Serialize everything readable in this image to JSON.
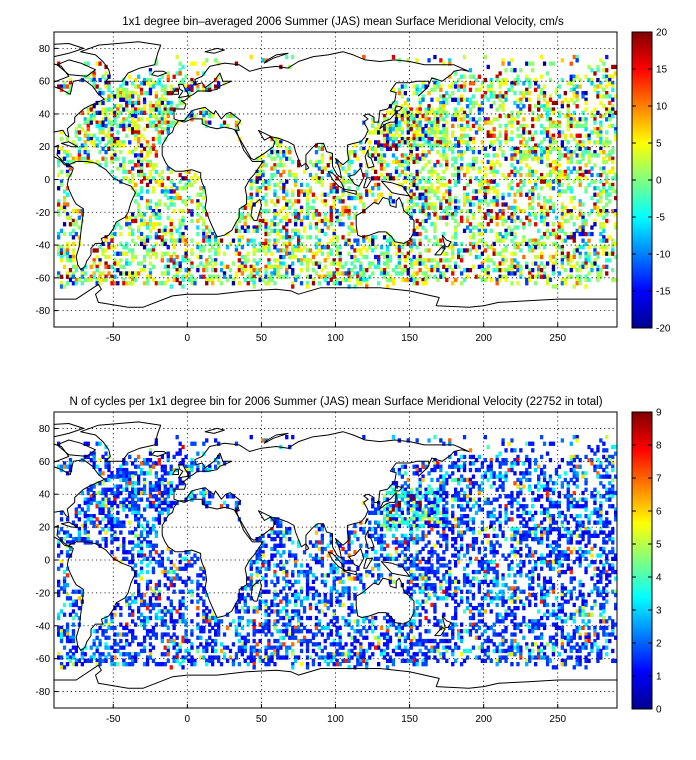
{
  "panels": [
    {
      "title": "1x1 degree bin–averaged 2006 Summer (JAS) mean Surface Meridional Velocity, cm/s",
      "colorbar": {
        "min": -20,
        "max": 20,
        "ticks": [
          "20",
          "15",
          "10",
          "5",
          "0",
          "-5",
          "-10",
          "-15",
          "-20"
        ]
      },
      "field": "meridional_velocity"
    },
    {
      "title": "N of cycles per 1x1 degree bin for 2006 Summer (JAS) mean Surface Meridional Velocity (22752 in total)",
      "colorbar": {
        "min": 0,
        "max": 9,
        "ticks": [
          "9",
          "8",
          "7",
          "6",
          "5",
          "4",
          "3",
          "2",
          "1",
          "0"
        ]
      },
      "field": "cycle_count"
    }
  ],
  "axes": {
    "x_ticks": [
      "-50",
      "0",
      "50",
      "100",
      "150",
      "200",
      "250"
    ],
    "y_ticks": [
      "80",
      "60",
      "40",
      "20",
      "0",
      "-20",
      "-40",
      "-60",
      "-80"
    ]
  },
  "map": {
    "projection": "plate-carree",
    "lon_range": [
      -90,
      290
    ],
    "lat_range": [
      -90,
      90
    ],
    "grid": true,
    "coastlines": true,
    "colormap": "jet",
    "bin_size_degrees": 1
  },
  "chart_data": [
    {
      "type": "heatmap",
      "title": "1x1 degree bin–averaged 2006 Summer (JAS) mean Surface Meridional Velocity, cm/s",
      "xlim": [
        -90,
        290
      ],
      "ylim": [
        -90,
        90
      ],
      "xticks": [
        -50,
        0,
        50,
        100,
        150,
        200,
        250
      ],
      "yticks": [
        -80,
        -60,
        -40,
        -20,
        0,
        20,
        40,
        60,
        80
      ],
      "colorbar_range": [
        -20,
        20
      ],
      "units": "cm/s",
      "grid": true
    },
    {
      "type": "heatmap",
      "title": "N of cycles per 1x1 degree bin for 2006 Summer (JAS) mean Surface Meridional Velocity (22752 in total)",
      "xlim": [
        -90,
        290
      ],
      "ylim": [
        -90,
        90
      ],
      "xticks": [
        -50,
        0,
        50,
        100,
        150,
        200,
        250
      ],
      "yticks": [
        -80,
        -60,
        -40,
        -20,
        0,
        20,
        40,
        60,
        80
      ],
      "colorbar_range": [
        0,
        9
      ],
      "total_count": 22752,
      "grid": true
    }
  ]
}
